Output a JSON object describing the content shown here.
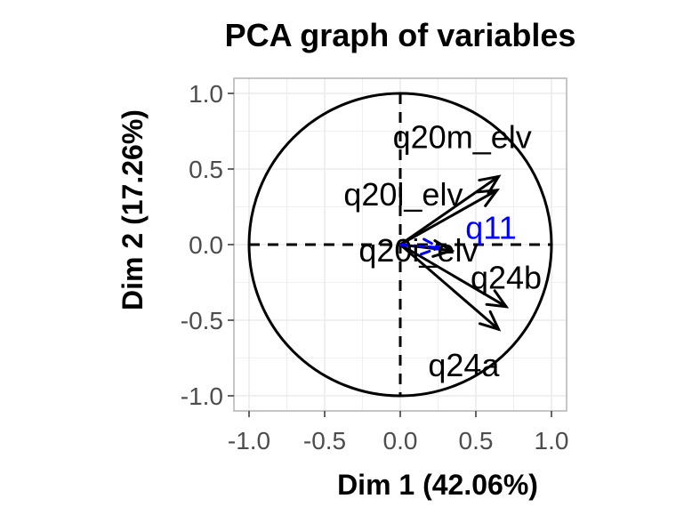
{
  "chart_data": {
    "type": "scatter",
    "title": "PCA graph of variables",
    "xlabel": "Dim 1 (42.06%)",
    "ylabel": "Dim 2 (17.26%)",
    "xlim": [
      -1.1,
      1.1
    ],
    "ylim": [
      -1.1,
      1.1
    ],
    "x_ticks": [
      -1.0,
      -0.5,
      0.0,
      0.5,
      1.0
    ],
    "y_ticks": [
      -1.0,
      -0.5,
      0.0,
      0.5,
      1.0
    ],
    "x_tick_labels": [
      "-1.0",
      "-0.5",
      "0.0",
      "0.5",
      "1.0"
    ],
    "y_tick_labels": [
      "-1.0",
      "-0.5",
      "0.0",
      "0.5",
      "1.0"
    ],
    "grid": true,
    "unit_circle": true,
    "colors": {
      "active": "#000000",
      "supplementary": "#0000ff",
      "grid": "#ebebeb",
      "panel_border": "#b3b3b3"
    },
    "variables": [
      {
        "name": "q20m_elv",
        "x": 0.65,
        "y": 0.45,
        "label_x": 0.41,
        "label_y": 0.71,
        "color": "#000000"
      },
      {
        "name": "q20l_elv",
        "x": 0.64,
        "y": 0.36,
        "label_x": 0.02,
        "label_y": 0.33,
        "color": "#000000"
      },
      {
        "name": "q20i_elv",
        "x": 0.34,
        "y": -0.04,
        "label_x": 0.12,
        "label_y": -0.04,
        "color": "#000000"
      },
      {
        "name": "q24b",
        "x": 0.7,
        "y": -0.41,
        "label_x": 0.7,
        "label_y": -0.22,
        "color": "#000000"
      },
      {
        "name": "q24a",
        "x": 0.65,
        "y": -0.56,
        "label_x": 0.42,
        "label_y": -0.8,
        "color": "#000000"
      },
      {
        "name": "q11",
        "x": 0.26,
        "y": -0.02,
        "label_x": 0.6,
        "label_y": 0.11,
        "color": "#0000ff",
        "dashed": true
      }
    ]
  }
}
